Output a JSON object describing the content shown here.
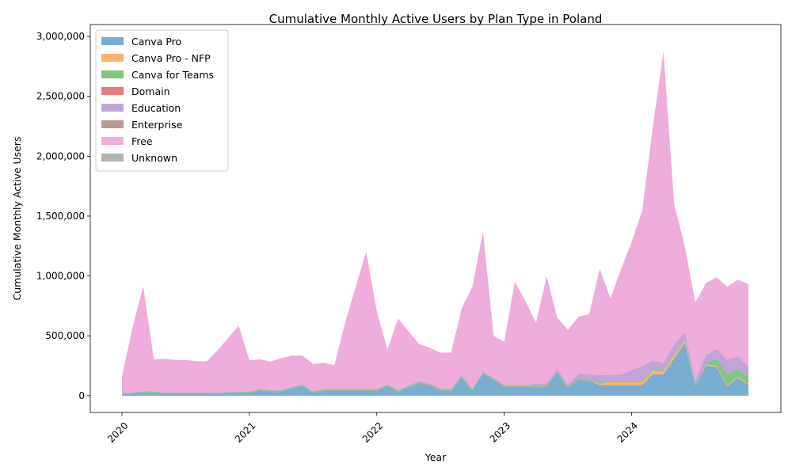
{
  "chart_data": {
    "type": "area",
    "stacked": true,
    "title": "Cumulative Monthly Active Users by Plan Type in Poland",
    "xlabel": "Year",
    "ylabel": "Cumulative Monthly Active Users",
    "x_tick_labels": [
      "2020",
      "2021",
      "2022",
      "2023",
      "2024"
    ],
    "y_ticks": [
      0,
      500000,
      1000000,
      1500000,
      2000000,
      2500000,
      3000000
    ],
    "y_tick_labels": [
      "0",
      "500,000",
      "1,000,000",
      "1,500,000",
      "2,000,000",
      "2,500,000",
      "3,000,000"
    ],
    "ylim": [
      -140000,
      3100000
    ],
    "grid": false,
    "legend_position": "top-left",
    "x": [
      "2020-01",
      "2020-02",
      "2020-03",
      "2020-04",
      "2020-05",
      "2020-06",
      "2020-07",
      "2020-08",
      "2020-09",
      "2020-10",
      "2020-11",
      "2020-12",
      "2021-01",
      "2021-02",
      "2021-03",
      "2021-04",
      "2021-05",
      "2021-06",
      "2021-07",
      "2021-08",
      "2021-09",
      "2021-10",
      "2021-11",
      "2021-12",
      "2022-01",
      "2022-02",
      "2022-03",
      "2022-04",
      "2022-05",
      "2022-06",
      "2022-07",
      "2022-08",
      "2022-09",
      "2022-10",
      "2022-11",
      "2022-12",
      "2023-01",
      "2023-02",
      "2023-03",
      "2023-04",
      "2023-05",
      "2023-06",
      "2023-07",
      "2023-08",
      "2023-09",
      "2023-10",
      "2023-11",
      "2023-12",
      "2024-01",
      "2024-02",
      "2024-03",
      "2024-04",
      "2024-05",
      "2024-06",
      "2024-07",
      "2024-08",
      "2024-09",
      "2024-10",
      "2024-11",
      "2024-12"
    ],
    "series": [
      {
        "name": "Canva Pro",
        "color": "#1f77b4",
        "values": [
          10000,
          15000,
          20000,
          20000,
          15000,
          15000,
          15000,
          15000,
          15000,
          15000,
          20000,
          20000,
          20000,
          40000,
          30000,
          30000,
          60000,
          80000,
          20000,
          40000,
          40000,
          40000,
          40000,
          40000,
          40000,
          80000,
          30000,
          70000,
          100000,
          80000,
          40000,
          40000,
          150000,
          40000,
          180000,
          130000,
          70000,
          70000,
          70000,
          70000,
          70000,
          190000,
          60000,
          130000,
          120000,
          90000,
          90000,
          90000,
          90000,
          90000,
          180000,
          180000,
          310000,
          440000,
          80000,
          250000,
          240000,
          80000,
          150000,
          90000
        ]
      },
      {
        "name": "Canva Pro - NFP",
        "color": "#ff7f0e",
        "values": [
          0,
          0,
          0,
          0,
          0,
          0,
          0,
          0,
          0,
          0,
          0,
          0,
          0,
          0,
          0,
          0,
          0,
          0,
          0,
          0,
          0,
          0,
          0,
          0,
          0,
          0,
          0,
          0,
          0,
          0,
          0,
          0,
          0,
          0,
          0,
          0,
          0,
          0,
          0,
          0,
          0,
          0,
          0,
          0,
          0,
          10000,
          25000,
          25000,
          25000,
          25000,
          25000,
          25000,
          25000,
          20000,
          0,
          10000,
          10000,
          10000,
          10000,
          10000
        ]
      },
      {
        "name": "Canva for Teams",
        "color": "#2ca02c",
        "values": [
          5000,
          10000,
          10000,
          10000,
          8000,
          8000,
          8000,
          8000,
          8000,
          8000,
          8000,
          8000,
          10000,
          10000,
          10000,
          10000,
          10000,
          10000,
          10000,
          10000,
          10000,
          10000,
          10000,
          10000,
          10000,
          10000,
          10000,
          10000,
          10000,
          10000,
          10000,
          10000,
          10000,
          10000,
          10000,
          10000,
          10000,
          10000,
          10000,
          10000,
          10000,
          10000,
          10000,
          10000,
          10000,
          10000,
          10000,
          10000,
          10000,
          10000,
          10000,
          10000,
          10000,
          10000,
          10000,
          10000,
          60000,
          90000,
          60000,
          60000
        ]
      },
      {
        "name": "Domain",
        "color": "#d62728",
        "values": [
          0,
          0,
          0,
          0,
          0,
          0,
          0,
          0,
          0,
          0,
          0,
          0,
          0,
          0,
          0,
          0,
          0,
          0,
          0,
          0,
          0,
          0,
          0,
          0,
          0,
          0,
          0,
          0,
          0,
          0,
          0,
          0,
          0,
          0,
          0,
          0,
          0,
          0,
          0,
          0,
          0,
          0,
          0,
          0,
          0,
          0,
          0,
          0,
          0,
          0,
          0,
          0,
          0,
          0,
          0,
          0,
          0,
          0,
          0,
          0
        ]
      },
      {
        "name": "Education",
        "color": "#9467bd",
        "values": [
          5000,
          5000,
          5000,
          5000,
          5000,
          5000,
          5000,
          5000,
          5000,
          5000,
          5000,
          5000,
          5000,
          5000,
          5000,
          5000,
          5000,
          5000,
          5000,
          5000,
          5000,
          5000,
          5000,
          5000,
          5000,
          5000,
          5000,
          5000,
          10000,
          10000,
          10000,
          10000,
          10000,
          10000,
          10000,
          10000,
          10000,
          10000,
          10000,
          20000,
          20000,
          20000,
          20000,
          40000,
          50000,
          60000,
          50000,
          50000,
          90000,
          120000,
          80000,
          60000,
          80000,
          60000,
          40000,
          70000,
          80000,
          120000,
          110000,
          80000
        ]
      },
      {
        "name": "Enterprise",
        "color": "#8c564b",
        "values": [
          0,
          0,
          0,
          0,
          0,
          0,
          0,
          0,
          0,
          0,
          0,
          0,
          0,
          0,
          0,
          0,
          0,
          0,
          0,
          0,
          0,
          0,
          0,
          0,
          0,
          0,
          0,
          0,
          0,
          0,
          0,
          0,
          0,
          0,
          0,
          0,
          0,
          0,
          0,
          0,
          0,
          0,
          0,
          0,
          0,
          0,
          0,
          0,
          0,
          0,
          0,
          0,
          0,
          0,
          0,
          0,
          0,
          0,
          0,
          0
        ]
      },
      {
        "name": "Free",
        "color": "#e377c2",
        "values": [
          140000,
          540000,
          880000,
          270000,
          280000,
          270000,
          270000,
          260000,
          260000,
          350000,
          450000,
          550000,
          260000,
          250000,
          240000,
          270000,
          260000,
          240000,
          230000,
          220000,
          200000,
          550000,
          850000,
          1150000,
          650000,
          290000,
          600000,
          450000,
          310000,
          300000,
          300000,
          300000,
          560000,
          850000,
          1170000,
          350000,
          360000,
          860000,
          700000,
          510000,
          900000,
          430000,
          460000,
          480000,
          500000,
          890000,
          640000,
          880000,
          1070000,
          1300000,
          1950000,
          2600000,
          1180000,
          720000,
          650000,
          600000,
          600000,
          610000,
          640000,
          690000
        ]
      },
      {
        "name": "Unknown",
        "color": "#7f7f7f",
        "values": [
          0,
          0,
          0,
          0,
          0,
          0,
          0,
          0,
          0,
          0,
          0,
          0,
          0,
          0,
          0,
          0,
          0,
          0,
          0,
          0,
          0,
          0,
          0,
          0,
          0,
          0,
          0,
          0,
          0,
          0,
          0,
          0,
          0,
          0,
          0,
          0,
          0,
          0,
          0,
          0,
          0,
          0,
          0,
          0,
          0,
          0,
          0,
          0,
          0,
          0,
          0,
          0,
          0,
          0,
          0,
          0,
          0,
          0,
          0,
          0
        ]
      }
    ]
  }
}
